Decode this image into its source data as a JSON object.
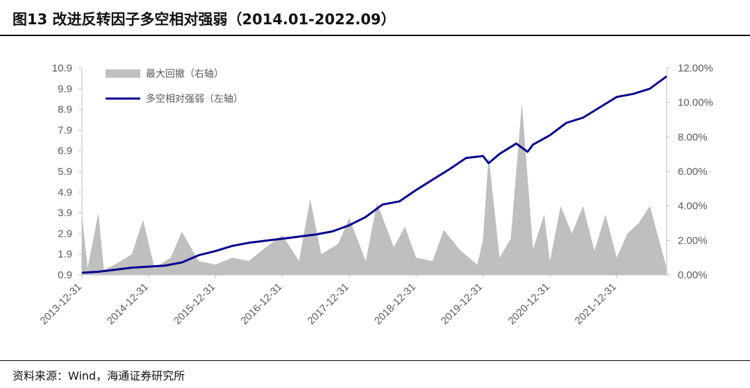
{
  "title": "图13 改进反转因子多空相对强弱（2014.01-2022.09）",
  "source": "资料来源：Wind，海通证券研究所",
  "colors": {
    "line": "#00008B",
    "area": "#BFBFBF",
    "axis": "#BFBFBF",
    "text": "#595959"
  },
  "chart_data": {
    "type": "line",
    "legend_placement": "top-left",
    "grid": false,
    "x_ticks": [
      "2013-12-31",
      "2014-12-31",
      "2015-12-31",
      "2016-12-31",
      "2017-12-31",
      "2018-12-31",
      "2019-12-31",
      "2020-12-31",
      "2021-12-31"
    ],
    "x_range": [
      "2013-12-31",
      "2022-09-30"
    ],
    "y_left": {
      "range": [
        0.9,
        10.9
      ],
      "ticks": [
        "0.9",
        "1.9",
        "2.9",
        "3.9",
        "4.9",
        "5.9",
        "6.9",
        "7.9",
        "8.9",
        "9.9",
        "10.9"
      ]
    },
    "y_right": {
      "range": [
        0,
        12
      ],
      "ticks": [
        "0.00%",
        "2.00%",
        "4.00%",
        "6.00%",
        "8.00%",
        "10.00%",
        "12.00%"
      ]
    },
    "series": [
      {
        "name": "多空相对强弱（左轴）",
        "axis": "left",
        "type": "line",
        "points": [
          [
            "2013-12-31",
            1.0
          ],
          [
            "2014-03-31",
            1.05
          ],
          [
            "2014-06-30",
            1.15
          ],
          [
            "2014-09-30",
            1.25
          ],
          [
            "2014-12-31",
            1.3
          ],
          [
            "2015-03-31",
            1.35
          ],
          [
            "2015-06-30",
            1.5
          ],
          [
            "2015-09-30",
            1.85
          ],
          [
            "2015-12-31",
            2.05
          ],
          [
            "2016-03-31",
            2.3
          ],
          [
            "2016-06-30",
            2.45
          ],
          [
            "2016-09-30",
            2.55
          ],
          [
            "2016-12-31",
            2.65
          ],
          [
            "2017-03-31",
            2.75
          ],
          [
            "2017-06-30",
            2.85
          ],
          [
            "2017-09-30",
            3.0
          ],
          [
            "2017-12-31",
            3.3
          ],
          [
            "2018-03-31",
            3.7
          ],
          [
            "2018-06-30",
            4.3
          ],
          [
            "2018-09-30",
            4.45
          ],
          [
            "2018-12-31",
            5.0
          ],
          [
            "2019-03-31",
            5.5
          ],
          [
            "2019-06-30",
            6.0
          ],
          [
            "2019-09-30",
            6.55
          ],
          [
            "2019-12-31",
            6.65
          ],
          [
            "2020-01-31",
            6.3
          ],
          [
            "2020-03-31",
            6.75
          ],
          [
            "2020-06-30",
            7.25
          ],
          [
            "2020-08-31",
            6.85
          ],
          [
            "2020-09-30",
            7.2
          ],
          [
            "2020-12-31",
            7.65
          ],
          [
            "2021-03-31",
            8.25
          ],
          [
            "2021-06-30",
            8.5
          ],
          [
            "2021-09-30",
            9.0
          ],
          [
            "2021-12-31",
            9.5
          ],
          [
            "2022-03-31",
            9.65
          ],
          [
            "2022-06-30",
            9.9
          ],
          [
            "2022-09-30",
            10.5
          ]
        ]
      },
      {
        "name": "最大回撤（右轴）",
        "axis": "right",
        "type": "area",
        "points": [
          [
            "2013-12-31",
            3.5
          ],
          [
            "2014-01-31",
            0.4
          ],
          [
            "2014-03-31",
            3.6
          ],
          [
            "2014-04-30",
            0.3
          ],
          [
            "2014-06-30",
            0.6
          ],
          [
            "2014-09-30",
            1.2
          ],
          [
            "2014-11-30",
            3.2
          ],
          [
            "2015-01-31",
            0.4
          ],
          [
            "2015-04-30",
            1.0
          ],
          [
            "2015-06-30",
            2.5
          ],
          [
            "2015-09-30",
            0.8
          ],
          [
            "2015-12-31",
            0.6
          ],
          [
            "2016-03-31",
            1.0
          ],
          [
            "2016-06-30",
            0.8
          ],
          [
            "2016-09-30",
            1.6
          ],
          [
            "2016-12-31",
            2.3
          ],
          [
            "2017-03-31",
            0.8
          ],
          [
            "2017-05-31",
            4.4
          ],
          [
            "2017-07-31",
            1.2
          ],
          [
            "2017-10-31",
            1.8
          ],
          [
            "2017-12-31",
            3.3
          ],
          [
            "2018-03-31",
            0.8
          ],
          [
            "2018-05-31",
            4.2
          ],
          [
            "2018-08-31",
            1.6
          ],
          [
            "2018-10-31",
            2.8
          ],
          [
            "2018-12-31",
            1.0
          ],
          [
            "2019-03-31",
            0.8
          ],
          [
            "2019-05-31",
            2.6
          ],
          [
            "2019-08-31",
            1.4
          ],
          [
            "2019-11-30",
            0.6
          ],
          [
            "2019-12-31",
            2.0
          ],
          [
            "2020-01-31",
            6.9
          ],
          [
            "2020-03-31",
            1.0
          ],
          [
            "2020-05-31",
            2.1
          ],
          [
            "2020-07-31",
            10.0
          ],
          [
            "2020-09-30",
            1.5
          ],
          [
            "2020-11-30",
            3.5
          ],
          [
            "2020-12-31",
            0.8
          ],
          [
            "2021-02-28",
            4.0
          ],
          [
            "2021-04-30",
            2.4
          ],
          [
            "2021-06-30",
            4.0
          ],
          [
            "2021-08-31",
            1.4
          ],
          [
            "2021-10-31",
            3.5
          ],
          [
            "2021-12-31",
            1.0
          ],
          [
            "2022-02-28",
            2.4
          ],
          [
            "2022-04-30",
            3.0
          ],
          [
            "2022-06-30",
            4.0
          ],
          [
            "2022-09-30",
            0.4
          ]
        ]
      }
    ]
  }
}
